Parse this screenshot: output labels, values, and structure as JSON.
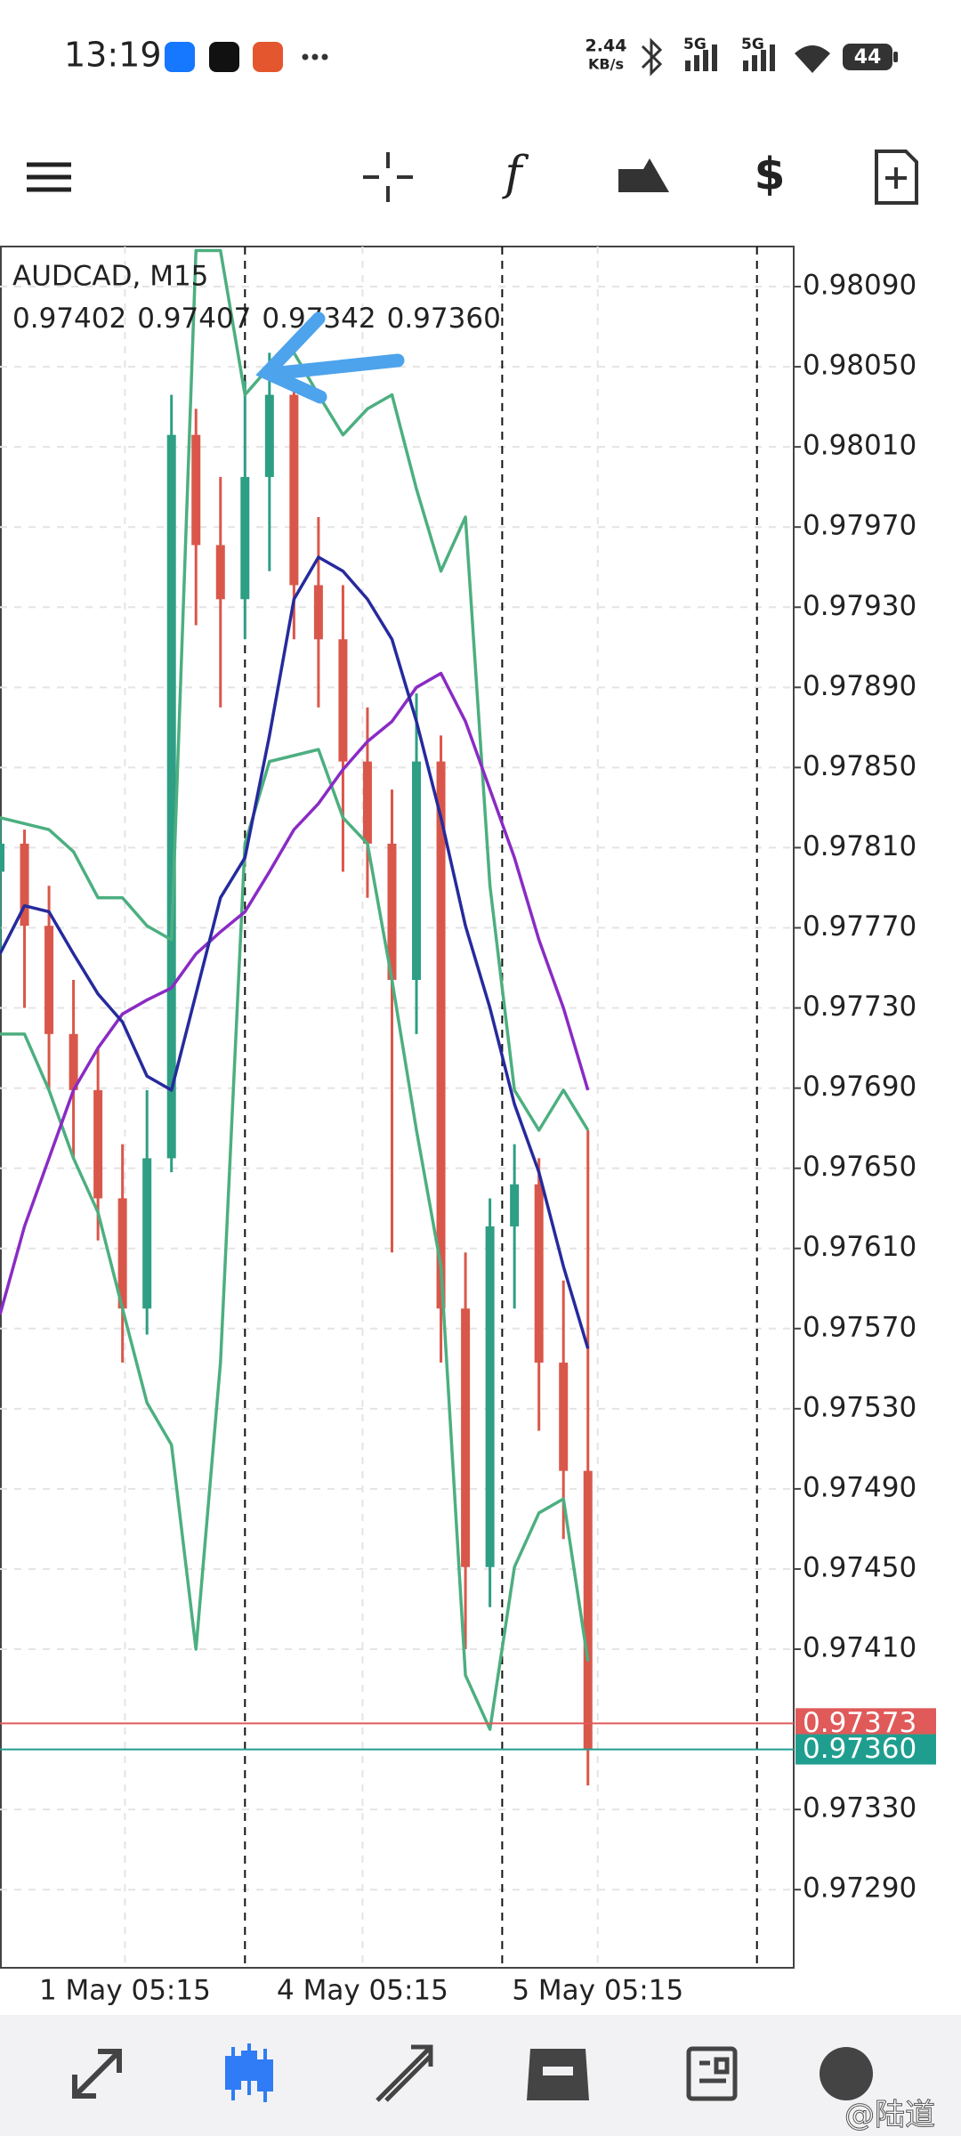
{
  "status_bar": {
    "time": "13:19",
    "network_speed": "2.44",
    "network_unit": "KB/s",
    "signal_1": "5G",
    "signal_2": "5G",
    "battery": "44"
  },
  "chart_header": {
    "symbol": "AUDCAD, M15",
    "ohlc": [
      "0.97402",
      "0.97407",
      "0.97342",
      "0.97360"
    ]
  },
  "watermark": "@陆道",
  "chart_data": {
    "type": "candlestick",
    "grid": true,
    "ylim": [
      0.97251,
      0.9811
    ],
    "yticks": [
      {
        "value": 0.9809,
        "label": "0.98090"
      },
      {
        "value": 0.9805,
        "label": "0.98050"
      },
      {
        "value": 0.9801,
        "label": "0.98010"
      },
      {
        "value": 0.9797,
        "label": "0.97970"
      },
      {
        "value": 0.9793,
        "label": "0.97930"
      },
      {
        "value": 0.9789,
        "label": "0.97890"
      },
      {
        "value": 0.9785,
        "label": "0.97850"
      },
      {
        "value": 0.9781,
        "label": "0.97810"
      },
      {
        "value": 0.9777,
        "label": "0.97770"
      },
      {
        "value": 0.9773,
        "label": "0.97730"
      },
      {
        "value": 0.9769,
        "label": "0.97690"
      },
      {
        "value": 0.9765,
        "label": "0.97650"
      },
      {
        "value": 0.9761,
        "label": "0.97610"
      },
      {
        "value": 0.9757,
        "label": "0.97570"
      },
      {
        "value": 0.9753,
        "label": "0.97530"
      },
      {
        "value": 0.9749,
        "label": "0.97490"
      },
      {
        "value": 0.9745,
        "label": "0.97450"
      },
      {
        "value": 0.9741,
        "label": "0.97410"
      },
      {
        "value": 0.9733,
        "label": "0.97330"
      },
      {
        "value": 0.9729,
        "label": "0.97290"
      }
    ],
    "xlim": [
      0,
      324
    ],
    "xticks": [
      {
        "value": 51,
        "label": "1 May 05:15"
      },
      {
        "value": 148,
        "label": "4 May 05:15"
      },
      {
        "value": 244,
        "label": "5 May 05:15"
      }
    ],
    "day_separators": [
      100,
      205,
      309
    ],
    "x": [
      0,
      10,
      20,
      30,
      40,
      50,
      60,
      70,
      80,
      90,
      100,
      110,
      120,
      130,
      140,
      150,
      160,
      170,
      180,
      190,
      200,
      210,
      220,
      230,
      240
    ],
    "candles": {
      "up_color": "#2e9e84",
      "down_color": "#d9574a",
      "open": [
        0.97798,
        0.97812,
        0.97771,
        0.97717,
        0.97689,
        0.97635,
        0.9758,
        0.97655,
        0.98016,
        0.97961,
        0.97934,
        0.97995,
        0.98036,
        0.97941,
        0.97914,
        0.97853,
        0.97812,
        0.97744,
        0.97853,
        0.9758,
        0.97451,
        0.97621,
        0.97642,
        0.97553,
        0.97499
      ],
      "high": [
        0.97825,
        0.97819,
        0.97791,
        0.97744,
        0.9771,
        0.97662,
        0.97689,
        0.98036,
        0.98029,
        0.97995,
        0.98043,
        0.98057,
        0.98043,
        0.97975,
        0.97941,
        0.9788,
        0.97839,
        0.97887,
        0.97866,
        0.97608,
        0.97635,
        0.97662,
        0.97655,
        0.97594,
        0.97669
      ],
      "low": [
        0.97757,
        0.9773,
        0.97689,
        0.97655,
        0.97614,
        0.97553,
        0.97567,
        0.97648,
        0.97921,
        0.9788,
        0.97914,
        0.97948,
        0.97914,
        0.9788,
        0.97798,
        0.97785,
        0.97608,
        0.97717,
        0.97553,
        0.9741,
        0.97431,
        0.9758,
        0.97519,
        0.97465,
        0.97342
      ],
      "close": [
        0.97812,
        0.97771,
        0.97717,
        0.97689,
        0.97635,
        0.9758,
        0.97655,
        0.98016,
        0.97961,
        0.97934,
        0.97995,
        0.98036,
        0.97941,
        0.97914,
        0.97853,
        0.97812,
        0.97744,
        0.97853,
        0.9758,
        0.97451,
        0.97621,
        0.97642,
        0.97553,
        0.97499,
        0.9736
      ]
    },
    "series": [
      {
        "color": "#4caf80",
        "values": [
          0.97825,
          0.97822,
          0.97819,
          0.97808,
          0.97785,
          0.97785,
          0.97771,
          0.97764,
          0.98108,
          0.98108,
          0.98036,
          0.9805,
          0.98057,
          0.98036,
          0.98016,
          0.98029,
          0.98036,
          0.97989,
          0.97948,
          0.97975,
          0.97791,
          0.97689,
          0.97669,
          0.97689,
          0.97669
        ]
      },
      {
        "color": "#4caf80",
        "values": [
          0.97717,
          0.97717,
          0.97689,
          0.97655,
          0.97628,
          0.9758,
          0.97533,
          0.97512,
          0.9741,
          0.97553,
          0.97812,
          0.97853,
          0.97856,
          0.97859,
          0.97825,
          0.97812,
          0.97744,
          0.97669,
          0.97601,
          0.97397,
          0.9737,
          0.97451,
          0.97478,
          0.97485,
          0.97404
        ]
      },
      {
        "color": "#8a2bc4",
        "values": [
          0.97577,
          0.97621,
          0.97655,
          0.97689,
          0.9771,
          0.97727,
          0.97734,
          0.9774,
          0.97757,
          0.97768,
          0.97778,
          0.97798,
          0.97819,
          0.97832,
          0.97849,
          0.97863,
          0.97873,
          0.9789,
          0.97897,
          0.97873,
          0.97839,
          0.97805,
          0.97764,
          0.9773,
          0.97689
        ]
      },
      {
        "color": "#262a9c",
        "values": [
          0.97757,
          0.97781,
          0.97778,
          0.97757,
          0.97737,
          0.97723,
          0.97696,
          0.97689,
          0.97737,
          0.97785,
          0.97805,
          0.97866,
          0.97934,
          0.97955,
          0.97948,
          0.97934,
          0.97914,
          0.97873,
          0.97825,
          0.97771,
          0.9773,
          0.97682,
          0.97648,
          0.97601,
          0.9756
        ]
      }
    ],
    "price_lines": [
      {
        "value": 0.97373,
        "label": "0.97373",
        "color": "#e05a5a"
      },
      {
        "value": 0.9736,
        "label": "0.97360",
        "color": "#1f9e8f"
      }
    ]
  }
}
